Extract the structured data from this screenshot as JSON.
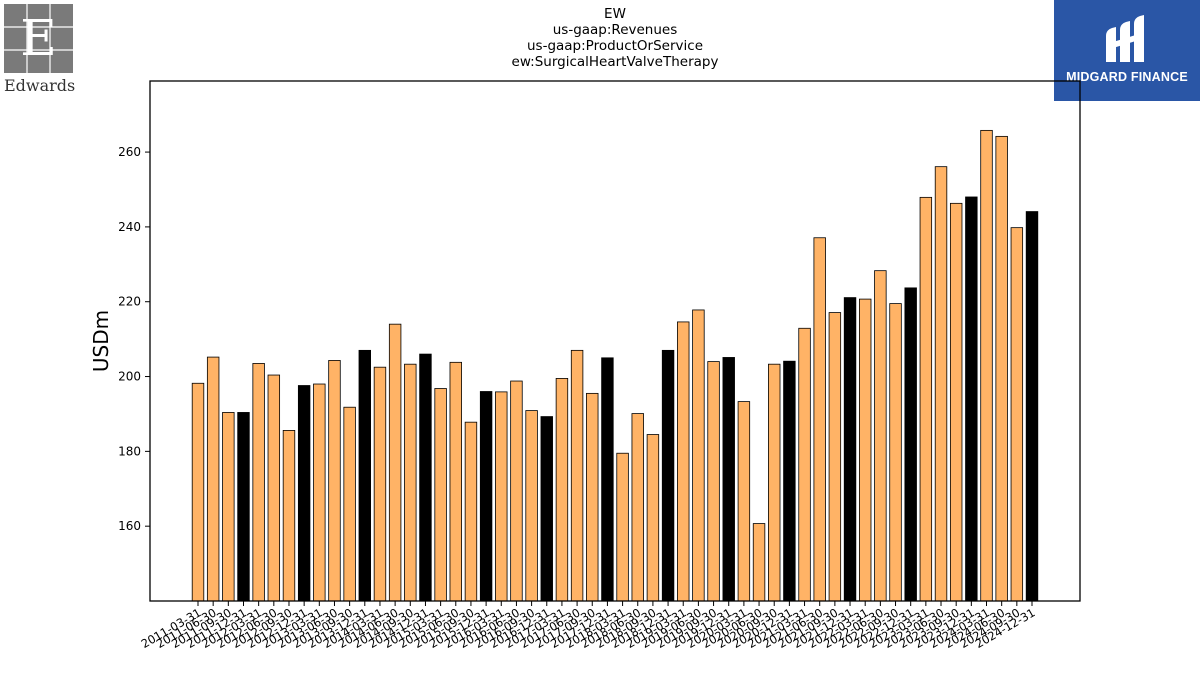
{
  "title": {
    "line1": "EW",
    "line2": "us-gaap:Revenues",
    "line3": "us-gaap:ProductOrService",
    "line4": "ew:SurgicalHeartValveTherapy"
  },
  "logos": {
    "left": {
      "letter": "E",
      "wordmark": "Edwards"
    },
    "right": {
      "wordmark": "MIDGARD FINANCE"
    }
  },
  "colors": {
    "bar": "#ffb366",
    "bar_highlight": "#000000",
    "edge": "#000000"
  },
  "chart_data": {
    "type": "bar",
    "ylabel": "USDm",
    "xlabel": "",
    "ylim": [
      140,
      279
    ],
    "yticks": [
      160,
      180,
      200,
      220,
      240,
      260
    ],
    "grid": false,
    "categories": [
      "2011-03-31",
      "2011-06-30",
      "2011-09-30",
      "2011-12-31",
      "2012-03-31",
      "2012-06-30",
      "2012-09-30",
      "2012-12-31",
      "2013-03-31",
      "2013-06-30",
      "2013-09-30",
      "2013-12-31",
      "2014-03-31",
      "2014-06-30",
      "2014-09-30",
      "2014-12-31",
      "2015-03-31",
      "2015-06-30",
      "2015-09-30",
      "2015-12-31",
      "2016-03-31",
      "2016-06-30",
      "2016-09-30",
      "2016-12-31",
      "2017-03-31",
      "2017-06-30",
      "2017-09-30",
      "2017-12-31",
      "2018-03-31",
      "2018-06-30",
      "2018-09-30",
      "2018-12-31",
      "2019-03-31",
      "2019-06-30",
      "2019-09-30",
      "2019-12-31",
      "2020-03-31",
      "2020-06-30",
      "2020-09-30",
      "2020-12-31",
      "2021-03-31",
      "2021-06-30",
      "2021-09-30",
      "2021-12-31",
      "2022-03-31",
      "2022-06-30",
      "2022-09-30",
      "2022-12-31",
      "2023-03-31",
      "2023-06-30",
      "2023-09-30",
      "2023-12-31",
      "2024-03-31",
      "2024-06-30",
      "2024-09-30",
      "2024-12-31"
    ],
    "values": [
      198.2,
      205.2,
      190.4,
      190.4,
      203.5,
      200.4,
      185.6,
      197.6,
      198.0,
      204.3,
      191.8,
      207.0,
      202.5,
      214.0,
      203.3,
      206.0,
      196.8,
      203.8,
      187.8,
      196.0,
      195.9,
      198.8,
      190.9,
      189.3,
      199.5,
      207.0,
      195.5,
      205.0,
      179.5,
      190.1,
      184.5,
      207.0,
      214.6,
      217.8,
      204.0,
      205.1,
      193.3,
      160.7,
      203.3,
      204.1,
      212.9,
      237.1,
      217.1,
      221.1,
      220.7,
      228.3,
      219.5,
      223.7,
      247.9,
      256.1,
      246.3,
      248.0,
      265.8,
      264.2,
      239.8,
      244.1
    ],
    "highlight": [
      false,
      false,
      false,
      true,
      false,
      false,
      false,
      true,
      false,
      false,
      false,
      true,
      false,
      false,
      false,
      true,
      false,
      false,
      false,
      true,
      false,
      false,
      false,
      true,
      false,
      false,
      false,
      true,
      false,
      false,
      false,
      true,
      false,
      false,
      false,
      true,
      false,
      false,
      false,
      true,
      false,
      false,
      false,
      true,
      false,
      false,
      false,
      true,
      false,
      false,
      false,
      true,
      false,
      false,
      false,
      true
    ]
  }
}
